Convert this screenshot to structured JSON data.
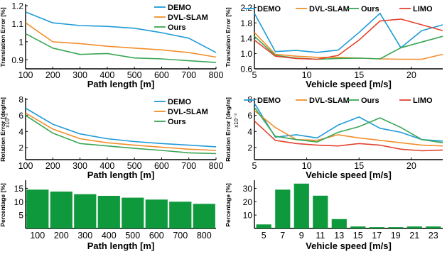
{
  "chart_data": [
    {
      "id": "translation-vs-path",
      "type": "line",
      "xlabel": "Path length [m]",
      "ylabel": "Translation Error [%]",
      "xlim": [
        100,
        800
      ],
      "ylim": [
        0.85,
        1.2
      ],
      "x_ticks": [
        100,
        200,
        300,
        400,
        500,
        600,
        700,
        800
      ],
      "y_ticks": [
        0.9,
        1.0,
        1.1,
        1.2
      ],
      "y_tick_labels": [
        "0.9",
        "1",
        "1.1",
        "1.2"
      ],
      "grid": false,
      "legend_position": "top-right",
      "x": [
        100,
        200,
        300,
        400,
        500,
        600,
        700,
        800
      ],
      "series": [
        {
          "name": "DEMO",
          "color": "#1f9bd7",
          "values": [
            1.165,
            1.105,
            1.09,
            1.085,
            1.075,
            1.05,
            1.02,
            0.94
          ]
        },
        {
          "name": "DVL-SLAM",
          "color": "#f28e2b",
          "values": [
            1.105,
            1.0,
            0.99,
            0.975,
            0.965,
            0.955,
            0.94,
            0.915
          ]
        },
        {
          "name": "Ours",
          "color": "#3aa655",
          "values": [
            1.045,
            0.965,
            0.93,
            0.935,
            0.91,
            0.905,
            0.895,
            0.885
          ]
        }
      ]
    },
    {
      "id": "translation-vs-speed",
      "type": "line",
      "xlabel": "Vehicle speed [m/s]",
      "ylabel": "Translation Error [%]",
      "xlim": [
        5,
        23
      ],
      "ylim": [
        0.6,
        2.25
      ],
      "x_ticks": [
        5,
        10,
        15,
        20
      ],
      "y_ticks": [
        0.6,
        1.0,
        1.4,
        1.8,
        2.2
      ],
      "y_tick_labels": [
        "0.6",
        "1.0",
        "1.4",
        "1.8",
        "2.2"
      ],
      "grid": false,
      "legend_position": "top",
      "x": [
        5,
        7,
        9,
        11,
        13,
        15,
        17,
        19,
        21,
        23
      ],
      "series": [
        {
          "name": "DEMO",
          "color": "#1f9bd7",
          "values": [
            2.05,
            1.05,
            1.08,
            1.03,
            1.09,
            1.55,
            2.05,
            1.15,
            1.6,
            1.75
          ]
        },
        {
          "name": "DVL-SLAM",
          "color": "#f28e2b",
          "values": [
            1.55,
            0.98,
            0.93,
            0.9,
            0.9,
            0.88,
            0.86,
            0.85,
            0.85,
            0.98
          ]
        },
        {
          "name": "Ours",
          "color": "#3aa655",
          "values": [
            1.45,
            0.95,
            0.88,
            0.85,
            0.87,
            0.88,
            0.86,
            1.15,
            1.3,
            1.45
          ]
        },
        {
          "name": "LIMO",
          "color": "#e2432f",
          "values": [
            1.35,
            0.93,
            0.87,
            0.85,
            0.95,
            1.35,
            1.85,
            1.9,
            1.75,
            1.6
          ]
        }
      ]
    },
    {
      "id": "rotation-vs-path",
      "type": "line",
      "xlabel": "Path length [m]",
      "ylabel": "Rotation Error [deg/m]",
      "y_multiplier": "x10⁻³",
      "xlim": [
        100,
        800
      ],
      "ylim": [
        0.5,
        8
      ],
      "x_ticks": [
        100,
        200,
        300,
        400,
        500,
        600,
        700,
        800
      ],
      "y_ticks": [
        2,
        4,
        6,
        8
      ],
      "y_tick_labels": [
        "2",
        "4",
        "6",
        "8"
      ],
      "grid": false,
      "legend_position": "top-right",
      "x": [
        100,
        200,
        300,
        400,
        500,
        600,
        700,
        800
      ],
      "series": [
        {
          "name": "DEMO",
          "color": "#1f9bd7",
          "values": [
            6.9,
            4.9,
            3.7,
            3.1,
            2.75,
            2.5,
            2.3,
            2.1
          ]
        },
        {
          "name": "DVL-SLAM",
          "color": "#f28e2b",
          "values": [
            6.3,
            4.3,
            3.1,
            2.6,
            2.3,
            2.05,
            1.8,
            1.65
          ]
        },
        {
          "name": "Ours",
          "color": "#3aa655",
          "values": [
            6.0,
            3.8,
            2.5,
            2.2,
            1.9,
            1.65,
            1.35,
            1.25
          ]
        }
      ]
    },
    {
      "id": "rotation-vs-speed",
      "type": "line",
      "xlabel": "Vehicle speed [m/s]",
      "ylabel": "Rotation Error [deg/m]",
      "y_multiplier": "x10⁻³",
      "xlim": [
        5,
        23
      ],
      "ylim": [
        0.5,
        8
      ],
      "x_ticks": [
        5,
        10,
        15,
        20
      ],
      "y_ticks": [
        2,
        4,
        6,
        8
      ],
      "y_tick_labels": [
        "2",
        "4",
        "6",
        "8"
      ],
      "grid": false,
      "legend_position": "top",
      "x": [
        5,
        7,
        9,
        11,
        13,
        15,
        17,
        19,
        21,
        23
      ],
      "series": [
        {
          "name": "DEMO",
          "color": "#1f9bd7",
          "values": [
            7.5,
            3.3,
            3.6,
            3.2,
            4.8,
            5.8,
            4.4,
            3.9,
            3.0,
            2.8
          ]
        },
        {
          "name": "DVL-SLAM",
          "color": "#f28e2b",
          "values": [
            6.6,
            4.5,
            3.0,
            2.9,
            3.6,
            3.2,
            2.9,
            2.6,
            2.3,
            2.2
          ]
        },
        {
          "name": "Ours",
          "color": "#3aa655",
          "values": [
            7.0,
            3.4,
            3.0,
            2.7,
            3.9,
            4.6,
            5.7,
            4.5,
            3.0,
            2.6
          ]
        },
        {
          "name": "LIMO",
          "color": "#e2432f",
          "values": [
            5.3,
            2.9,
            2.5,
            2.3,
            2.2,
            2.5,
            2.3,
            1.8,
            1.6,
            1.7
          ]
        }
      ]
    },
    {
      "id": "percentage-vs-path",
      "type": "bar",
      "xlabel": "Path length [m]",
      "ylabel": "Percentage [%]",
      "ylim": [
        0,
        17.5
      ],
      "y_ticks": [
        5,
        10,
        15
      ],
      "y_tick_labels": [
        "5",
        "10",
        "15"
      ],
      "grid": false,
      "color": "#0e9a3c",
      "categories": [
        "100",
        "200",
        "300",
        "400",
        "500",
        "600",
        "700",
        "800"
      ],
      "values": [
        14.5,
        13.8,
        12.8,
        12.2,
        11.5,
        10.8,
        10.0,
        9.2
      ]
    },
    {
      "id": "percentage-vs-speed",
      "type": "bar",
      "xlabel": "Vehicle speed [m/s]",
      "ylabel": "Percentage [%]",
      "ylim": [
        0,
        35
      ],
      "y_ticks": [
        10,
        20,
        30
      ],
      "y_tick_labels": [
        "10",
        "20",
        "30"
      ],
      "grid": false,
      "color": "#0e9a3c",
      "categories": [
        "5",
        "7",
        "9",
        "11",
        "13",
        "15",
        "17",
        "19",
        "21",
        "23"
      ],
      "values": [
        3.0,
        29.0,
        33.5,
        24.5,
        7.0,
        1.5,
        1.0,
        1.0,
        1.5,
        1.5
      ]
    }
  ]
}
